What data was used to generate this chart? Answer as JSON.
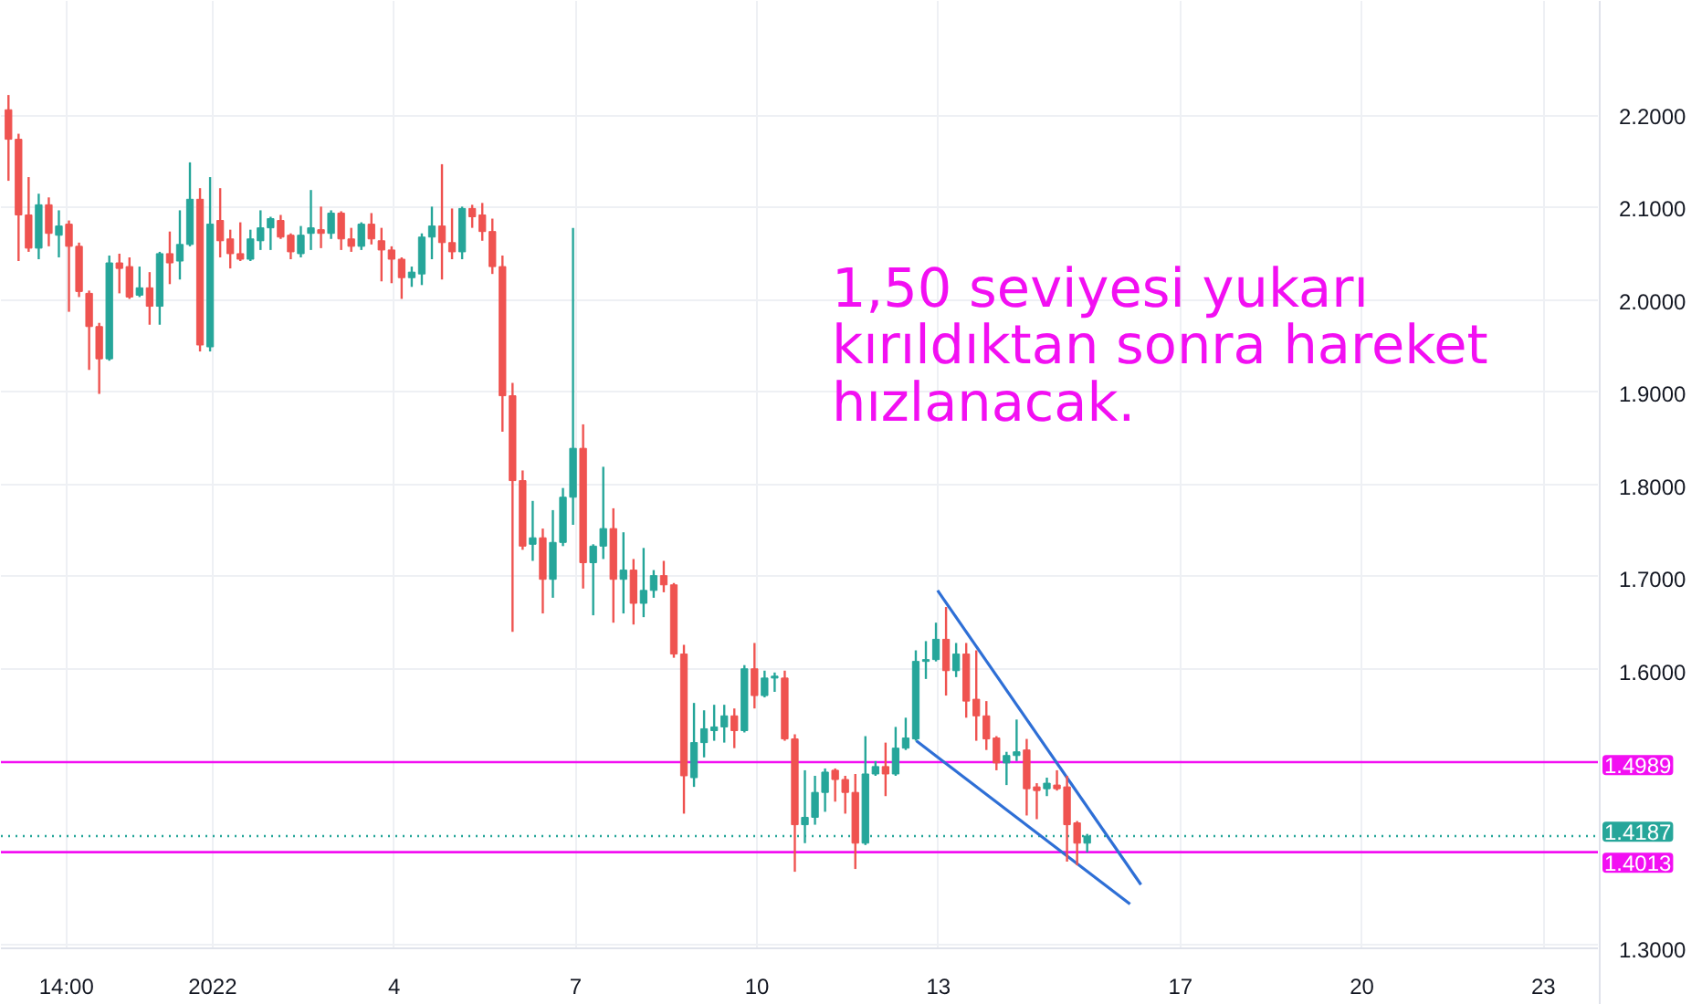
{
  "chart_data": {
    "type": "candlestick",
    "x": [
      "2021-12-28T15:00",
      "2021-12-28T19:00",
      "2021-12-28T23:00",
      "2021-12-29T03:00",
      "2021-12-29T07:00",
      "2021-12-29T11:00",
      "2021-12-29T15:00",
      "2021-12-29T19:00",
      "2021-12-29T23:00",
      "2021-12-30T03:00",
      "2021-12-30T07:00",
      "2021-12-30T11:00",
      "2021-12-30T15:00",
      "2021-12-30T19:00",
      "2021-12-30T23:00",
      "2021-12-31T03:00",
      "2021-12-31T07:00",
      "2021-12-31T11:00",
      "2021-12-31T15:00",
      "2021-12-31T19:00",
      "2021-12-31T23:00",
      "2022-01-01T03:00",
      "2022-01-01T07:00",
      "2022-01-01T11:00",
      "2022-01-01T15:00",
      "2022-01-01T19:00",
      "2022-01-01T23:00",
      "2022-01-02T03:00",
      "2022-01-02T07:00",
      "2022-01-02T11:00",
      "2022-01-02T15:00",
      "2022-01-02T19:00",
      "2022-01-02T23:00",
      "2022-01-03T03:00",
      "2022-01-03T07:00",
      "2022-01-03T11:00",
      "2022-01-03T15:00",
      "2022-01-03T19:00",
      "2022-01-03T23:00",
      "2022-01-04T03:00",
      "2022-01-04T07:00",
      "2022-01-04T11:00",
      "2022-01-04T15:00",
      "2022-01-04T19:00",
      "2022-01-04T23:00",
      "2022-01-05T03:00",
      "2022-01-05T07:00",
      "2022-01-05T11:00",
      "2022-01-05T15:00",
      "2022-01-05T19:00",
      "2022-01-05T23:00",
      "2022-01-06T03:00",
      "2022-01-06T07:00",
      "2022-01-06T11:00",
      "2022-01-06T15:00",
      "2022-01-06T19:00",
      "2022-01-06T23:00",
      "2022-01-07T03:00",
      "2022-01-07T07:00",
      "2022-01-07T11:00",
      "2022-01-07T15:00",
      "2022-01-07T19:00",
      "2022-01-07T23:00",
      "2022-01-08T03:00",
      "2022-01-08T07:00",
      "2022-01-08T11:00",
      "2022-01-08T15:00",
      "2022-01-08T19:00",
      "2022-01-08T23:00",
      "2022-01-09T03:00",
      "2022-01-09T07:00",
      "2022-01-09T11:00",
      "2022-01-09T15:00",
      "2022-01-09T19:00",
      "2022-01-09T23:00",
      "2022-01-10T03:00",
      "2022-01-10T07:00",
      "2022-01-10T11:00",
      "2022-01-10T15:00",
      "2022-01-10T19:00",
      "2022-01-10T23:00",
      "2022-01-11T03:00",
      "2022-01-11T07:00",
      "2022-01-11T11:00",
      "2022-01-11T15:00",
      "2022-01-11T19:00",
      "2022-01-11T23:00",
      "2022-01-12T03:00",
      "2022-01-12T07:00",
      "2022-01-12T11:00",
      "2022-01-12T15:00",
      "2022-01-12T19:00",
      "2022-01-12T23:00",
      "2022-01-13T03:00",
      "2022-01-13T07:00",
      "2022-01-13T11:00",
      "2022-01-13T15:00",
      "2022-01-13T19:00",
      "2022-01-13T23:00",
      "2022-01-14T03:00",
      "2022-01-14T07:00",
      "2022-01-14T11:00",
      "2022-01-14T15:00",
      "2022-01-14T19:00",
      "2022-01-14T23:00",
      "2022-01-15T03:00",
      "2022-01-15T07:00",
      "2022-01-15T11:00"
    ],
    "ohlc": [
      [
        2.206,
        2.222,
        2.129,
        2.174
      ],
      [
        2.174,
        2.18,
        2.042,
        2.092
      ],
      [
        2.092,
        2.133,
        2.052,
        2.056
      ],
      [
        2.056,
        2.115,
        2.044,
        2.103
      ],
      [
        2.103,
        2.111,
        2.058,
        2.072
      ],
      [
        2.07,
        2.097,
        2.046,
        2.08
      ],
      [
        2.082,
        2.086,
        1.987,
        2.058
      ],
      [
        2.058,
        2.062,
        2.003,
        2.009
      ],
      [
        2.007,
        2.01,
        1.924,
        1.971
      ],
      [
        1.971,
        1.975,
        1.898,
        1.936
      ],
      [
        1.936,
        2.048,
        1.934,
        2.04
      ],
      [
        2.04,
        2.05,
        2.007,
        2.034
      ],
      [
        2.036,
        2.046,
        2.001,
        2.003
      ],
      [
        2.005,
        2.036,
        2.003,
        2.013
      ],
      [
        2.013,
        2.03,
        1.973,
        1.993
      ],
      [
        1.993,
        2.052,
        1.973,
        2.05
      ],
      [
        2.05,
        2.074,
        2.017,
        2.04
      ],
      [
        2.042,
        2.097,
        2.022,
        2.06
      ],
      [
        2.06,
        2.149,
        2.058,
        2.109
      ],
      [
        2.109,
        2.121,
        1.944,
        1.951
      ],
      [
        1.949,
        2.133,
        1.944,
        2.082
      ],
      [
        2.086,
        2.121,
        2.046,
        2.064
      ],
      [
        2.066,
        2.076,
        2.034,
        2.05
      ],
      [
        2.05,
        2.084,
        2.042,
        2.044
      ],
      [
        2.044,
        2.076,
        2.042,
        2.066
      ],
      [
        2.064,
        2.097,
        2.054,
        2.078
      ],
      [
        2.078,
        2.09,
        2.054,
        2.088
      ],
      [
        2.086,
        2.092,
        2.066,
        2.068
      ],
      [
        2.07,
        2.072,
        2.044,
        2.052
      ],
      [
        2.05,
        2.08,
        2.046,
        2.07
      ],
      [
        2.072,
        2.119,
        2.054,
        2.078
      ],
      [
        2.076,
        2.101,
        2.056,
        2.072
      ],
      [
        2.072,
        2.097,
        2.066,
        2.094
      ],
      [
        2.094,
        2.096,
        2.054,
        2.066
      ],
      [
        2.066,
        2.078,
        2.052,
        2.058
      ],
      [
        2.058,
        2.084,
        2.054,
        2.082
      ],
      [
        2.082,
        2.094,
        2.06,
        2.066
      ],
      [
        2.064,
        2.078,
        2.02,
        2.054
      ],
      [
        2.054,
        2.058,
        2.018,
        2.044
      ],
      [
        2.044,
        2.046,
        2.001,
        2.024
      ],
      [
        2.024,
        2.036,
        2.014,
        2.03
      ],
      [
        2.028,
        2.072,
        2.016,
        2.068
      ],
      [
        2.068,
        2.101,
        2.044,
        2.08
      ],
      [
        2.08,
        2.147,
        2.022,
        2.062
      ],
      [
        2.062,
        2.099,
        2.044,
        2.052
      ],
      [
        2.052,
        2.101,
        2.044,
        2.099
      ],
      [
        2.099,
        2.103,
        2.078,
        2.09
      ],
      [
        2.092,
        2.105,
        2.064,
        2.074
      ],
      [
        2.074,
        2.088,
        2.028,
        2.036
      ],
      [
        2.036,
        2.048,
        1.857,
        1.896
      ],
      [
        1.896,
        1.91,
        1.64,
        1.804
      ],
      [
        1.804,
        1.815,
        1.729,
        1.733
      ],
      [
        1.735,
        1.782,
        1.717,
        1.742
      ],
      [
        1.742,
        1.752,
        1.66,
        1.697
      ],
      [
        1.697,
        1.772,
        1.677,
        1.737
      ],
      [
        1.737,
        1.796,
        1.733,
        1.786
      ],
      [
        1.786,
        2.078,
        1.756,
        1.839
      ],
      [
        1.839,
        1.865,
        1.687,
        1.715
      ],
      [
        1.715,
        1.735,
        1.658,
        1.733
      ],
      [
        1.733,
        1.819,
        1.719,
        1.752
      ],
      [
        1.752,
        1.774,
        1.65,
        1.697
      ],
      [
        1.697,
        1.748,
        1.66,
        1.707
      ],
      [
        1.707,
        1.719,
        1.648,
        1.671
      ],
      [
        1.671,
        1.731,
        1.656,
        1.685
      ],
      [
        1.685,
        1.707,
        1.677,
        1.701
      ],
      [
        1.701,
        1.717,
        1.683,
        1.691
      ],
      [
        1.691,
        1.693,
        1.612,
        1.616
      ],
      [
        1.616,
        1.626,
        1.443,
        1.484
      ],
      [
        1.482,
        1.563,
        1.472,
        1.52
      ],
      [
        1.52,
        1.555,
        1.504,
        1.535
      ],
      [
        1.533,
        1.561,
        1.522,
        1.537
      ],
      [
        1.537,
        1.561,
        1.52,
        1.549
      ],
      [
        1.549,
        1.557,
        1.514,
        1.533
      ],
      [
        1.533,
        1.604,
        1.531,
        1.6
      ],
      [
        1.6,
        1.628,
        1.557,
        1.571
      ],
      [
        1.571,
        1.598,
        1.569,
        1.59
      ],
      [
        1.59,
        1.596,
        1.575,
        1.592
      ],
      [
        1.59,
        1.598,
        1.522,
        1.524
      ],
      [
        1.524,
        1.529,
        1.38,
        1.431
      ],
      [
        1.431,
        1.49,
        1.411,
        1.439
      ],
      [
        1.439,
        1.484,
        1.431,
        1.466
      ],
      [
        1.466,
        1.492,
        1.445,
        1.488
      ],
      [
        1.49,
        1.492,
        1.456,
        1.48
      ],
      [
        1.48,
        1.484,
        1.443,
        1.466
      ],
      [
        1.466,
        1.486,
        1.383,
        1.411
      ],
      [
        1.411,
        1.527,
        1.409,
        1.486
      ],
      [
        1.486,
        1.5,
        1.484,
        1.494
      ],
      [
        1.494,
        1.52,
        1.462,
        1.486
      ],
      [
        1.486,
        1.537,
        1.484,
        1.514
      ],
      [
        1.514,
        1.547,
        1.512,
        1.525
      ],
      [
        1.524,
        1.62,
        1.522,
        1.608
      ],
      [
        1.608,
        1.63,
        1.589,
        1.61
      ],
      [
        1.61,
        1.65,
        1.608,
        1.632
      ],
      [
        1.632,
        1.667,
        1.571,
        1.598
      ],
      [
        1.598,
        1.628,
        1.591,
        1.616
      ],
      [
        1.616,
        1.628,
        1.547,
        1.565
      ],
      [
        1.567,
        1.62,
        1.522,
        1.549
      ],
      [
        1.549,
        1.565,
        1.512,
        1.524
      ],
      [
        1.525,
        1.527,
        1.49,
        1.498
      ],
      [
        1.498,
        1.51,
        1.474,
        1.506
      ],
      [
        1.506,
        1.545,
        1.5,
        1.51
      ],
      [
        1.512,
        1.524,
        1.441,
        1.47
      ],
      [
        1.472,
        1.476,
        1.437,
        1.468
      ],
      [
        1.47,
        1.482,
        1.462,
        1.476
      ],
      [
        1.474,
        1.49,
        1.468,
        1.47
      ],
      [
        1.472,
        1.484,
        1.391,
        1.431
      ],
      [
        1.433,
        1.435,
        1.387,
        1.411
      ],
      [
        1.411,
        1.421,
        1.401,
        1.4187
      ]
    ],
    "colors": [
      "#ef5350",
      "#ef5350",
      "#ef5350",
      "#26a69a",
      "#ef5350",
      "#26a69a",
      "#ef5350",
      "#ef5350",
      "#ef5350",
      "#ef5350",
      "#26a69a",
      "#ef5350",
      "#ef5350",
      "#26a69a",
      "#ef5350",
      "#26a69a",
      "#ef5350",
      "#26a69a",
      "#26a69a",
      "#ef5350",
      "#26a69a",
      "#ef5350",
      "#ef5350",
      "#ef5350",
      "#26a69a",
      "#26a69a",
      "#26a69a",
      "#ef5350",
      "#ef5350",
      "#26a69a",
      "#26a69a",
      "#ef5350",
      "#26a69a",
      "#ef5350",
      "#ef5350",
      "#26a69a",
      "#ef5350",
      "#ef5350",
      "#ef5350",
      "#ef5350",
      "#26a69a",
      "#26a69a",
      "#26a69a",
      "#ef5350",
      "#ef5350",
      "#26a69a",
      "#ef5350",
      "#ef5350",
      "#ef5350",
      "#ef5350",
      "#ef5350",
      "#ef5350",
      "#26a69a",
      "#ef5350",
      "#26a69a",
      "#26a69a",
      "#26a69a",
      "#ef5350",
      "#26a69a",
      "#26a69a",
      "#ef5350",
      "#26a69a",
      "#ef5350",
      "#26a69a",
      "#26a69a",
      "#ef5350",
      "#ef5350",
      "#ef5350",
      "#26a69a",
      "#26a69a",
      "#26a69a",
      "#26a69a",
      "#ef5350",
      "#26a69a",
      "#ef5350",
      "#26a69a",
      "#26a69a",
      "#ef5350",
      "#ef5350",
      "#26a69a",
      "#26a69a",
      "#26a69a",
      "#ef5350",
      "#ef5350",
      "#ef5350",
      "#26a69a",
      "#26a69a",
      "#ef5350",
      "#26a69a",
      "#26a69a",
      "#26a69a",
      "#26a69a",
      "#26a69a",
      "#ef5350",
      "#26a69a",
      "#ef5350",
      "#ef5350",
      "#ef5350",
      "#ef5350",
      "#26a69a",
      "#26a69a",
      "#ef5350",
      "#ef5350",
      "#26a69a",
      "#ef5350",
      "#ef5350",
      "#ef5350",
      "#26a69a"
    ],
    "series": [
      {
        "type": "line",
        "x": [
          "2022-01-12T23:38",
          "2022-01-16T08:20"
        ],
        "values": [
          1.685,
          1.366
        ],
        "color": "#2e6fd6",
        "line_style": "solid"
      },
      {
        "type": "line",
        "x": [
          "2022-01-12T15:09",
          "2022-01-16T04:00"
        ],
        "values": [
          1.522,
          1.345
        ],
        "color": "#2e6fd6",
        "line_style": "solid"
      }
    ],
    "xlim": [
      "2021-12-28T12:00",
      "2022-01-23T22:00"
    ],
    "ylim": [
      1.297,
      2.324
    ],
    "xticks": [
      {
        "value": "2021-12-29T14:00",
        "label": "14:00"
      },
      {
        "value": "2022-01-01",
        "label": "2022"
      },
      {
        "value": "2022-01-04",
        "label": "4"
      },
      {
        "value": "2022-01-07",
        "label": "7"
      },
      {
        "value": "2022-01-10",
        "label": "10"
      },
      {
        "value": "2022-01-13",
        "label": "13"
      },
      {
        "value": "2022-01-17",
        "label": "17"
      },
      {
        "value": "2022-01-20",
        "label": "20"
      },
      {
        "value": "2022-01-23",
        "label": "23"
      }
    ],
    "yticks": [
      {
        "value": 2.2,
        "label": "2.2000"
      },
      {
        "value": 2.1,
        "label": "2.1000"
      },
      {
        "value": 2.0,
        "label": "2.0000"
      },
      {
        "value": 1.9,
        "label": "1.9000"
      },
      {
        "value": 1.8,
        "label": "1.8000"
      },
      {
        "value": 1.7,
        "label": "1.7000"
      },
      {
        "value": 1.6,
        "label": "1.6000"
      },
      {
        "value": 1.3,
        "label": "1.3000"
      }
    ],
    "grid": true,
    "ref_lines": [
      {
        "axis": "y",
        "value": 1.4989,
        "label": "1.4989",
        "color": "#f20ff2",
        "line_style": "solid"
      },
      {
        "axis": "y",
        "value": 1.4187,
        "label": "1.4187",
        "color": "#26a69a",
        "line_style": "dotted"
      },
      {
        "axis": "y",
        "value": 1.4013,
        "label": "1.4013",
        "color": "#f20ff2",
        "line_style": "solid"
      }
    ],
    "annotations": [
      "1,50 seviyesi yukarı kırıldıktan sonra hareket hızlanacak."
    ]
  }
}
